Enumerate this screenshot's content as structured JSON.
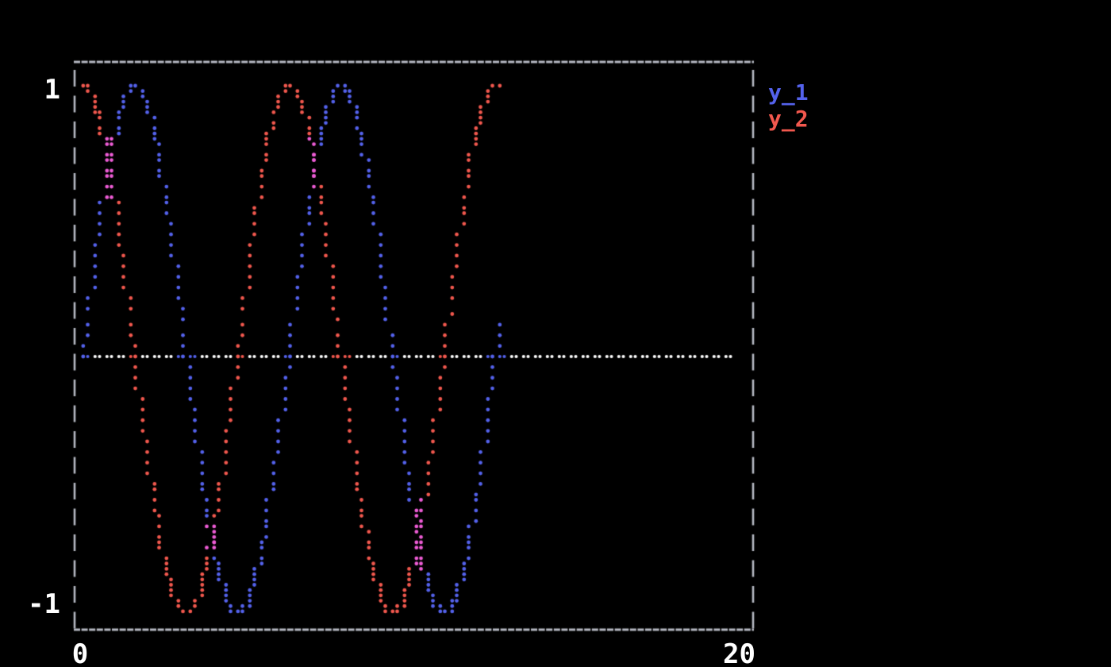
{
  "figure": {
    "background": "#000000",
    "border_color": "#b5b8c2",
    "text_color": "#ffffff"
  },
  "chart_data": {
    "type": "scatter",
    "render_style": "terminal-braille-dots",
    "title": "",
    "xlabel": "",
    "ylabel": "",
    "x_range": [
      0,
      20
    ],
    "y_range": [
      -1,
      1
    ],
    "x_tick_labels": {
      "left": "0",
      "right": "20"
    },
    "y_tick_labels": {
      "top": "1",
      "bottom": "-1"
    },
    "grid": false,
    "legend_position": "outside-top-right",
    "zero_line": {
      "y": 0,
      "color": "#ffffff",
      "style": "dotted",
      "x_start": 0,
      "x_end": 20
    },
    "overlap_color": "#ee5cd6",
    "overlap_points": [
      {
        "x": 0.785,
        "y": 0.707
      },
      {
        "x": 3.927,
        "y": -0.707
      },
      {
        "x": 7.069,
        "y": 0.707
      },
      {
        "x": 10.21,
        "y": -0.707
      }
    ],
    "series": [
      {
        "name": "y_1",
        "color": "#5462ec",
        "formula": "sin(x)",
        "x_start": 0,
        "x_end": 12.69,
        "n_points": 300,
        "sample_points": {
          "x": [
            0,
            0.628,
            1.257,
            1.885,
            2.513,
            3.142,
            3.77,
            4.398,
            5.027,
            5.655,
            6.283,
            6.912,
            7.54,
            8.168,
            8.796,
            9.425,
            10.053,
            10.681,
            11.31,
            11.938,
            12.566
          ],
          "y": [
            0,
            0.588,
            0.951,
            0.951,
            0.588,
            0,
            -0.588,
            -0.951,
            -0.951,
            -0.588,
            0,
            0.588,
            0.951,
            0.951,
            0.588,
            0,
            -0.588,
            -0.951,
            -0.951,
            -0.588,
            0
          ]
        }
      },
      {
        "name": "y_2",
        "color": "#f2584e",
        "formula": "cos(x)",
        "x_start": 0,
        "x_end": 12.69,
        "n_points": 300,
        "sample_points": {
          "x": [
            0,
            0.628,
            1.257,
            1.885,
            2.513,
            3.142,
            3.77,
            4.398,
            5.027,
            5.655,
            6.283,
            6.912,
            7.54,
            8.168,
            8.796,
            9.425,
            10.053,
            10.681,
            11.31,
            11.938,
            12.566
          ],
          "y": [
            1,
            0.809,
            0.309,
            -0.309,
            -0.809,
            -1,
            -0.809,
            -0.309,
            0.309,
            0.809,
            1,
            0.809,
            0.309,
            -0.309,
            -0.809,
            -1,
            -0.809,
            -0.309,
            0.309,
            0.809,
            1
          ]
        }
      }
    ]
  }
}
